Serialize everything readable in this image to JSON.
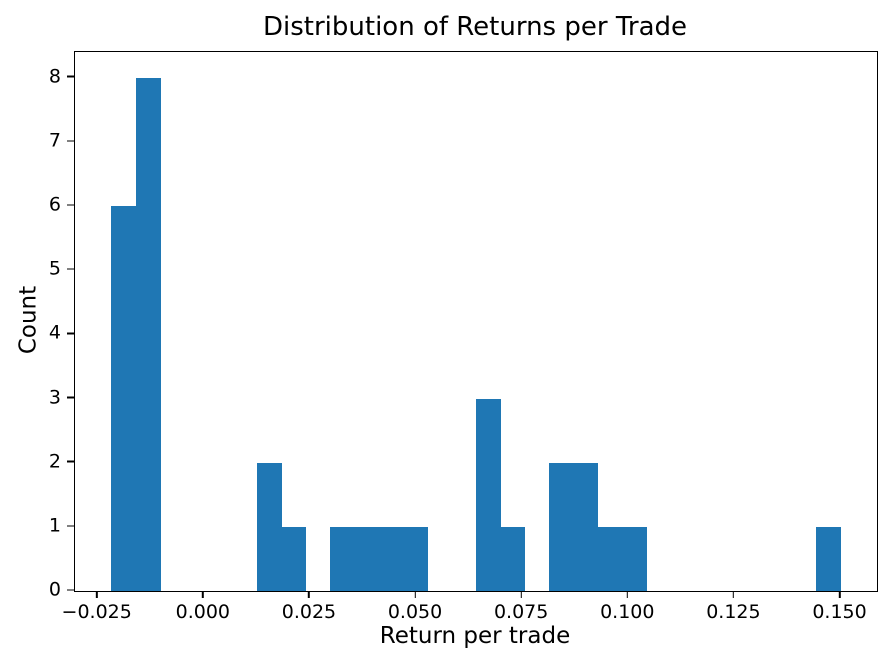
{
  "chart_data": {
    "type": "bar",
    "variant": "histogram",
    "title": "Distribution of Returns per Trade",
    "xlabel": "Return per trade",
    "ylabel": "Count",
    "bar_color": "#1f77b4",
    "axis_color": "#000000",
    "background_color": "#ffffff",
    "grid": false,
    "legend": null,
    "bins": {
      "start": -0.02176,
      "width": 0.005725,
      "count": 30
    },
    "counts": [
      6,
      8,
      0,
      0,
      0,
      0,
      2,
      1,
      0,
      1,
      1,
      1,
      1,
      0,
      0,
      3,
      1,
      0,
      2,
      2,
      1,
      1,
      0,
      0,
      0,
      0,
      0,
      0,
      0,
      1
    ],
    "xlim": [
      -0.030347,
      0.158587
    ],
    "ylim": [
      0,
      8.4
    ],
    "xticks": {
      "values": [
        -0.025,
        0.0,
        0.025,
        0.05,
        0.075,
        0.1,
        0.125,
        0.15
      ],
      "labels": [
        "−0.025",
        "0.000",
        "0.025",
        "0.050",
        "0.075",
        "0.100",
        "0.125",
        "0.150"
      ]
    },
    "yticks": {
      "values": [
        0,
        1,
        2,
        3,
        4,
        5,
        6,
        7,
        8
      ],
      "labels": [
        "0",
        "1",
        "2",
        "3",
        "4",
        "5",
        "6",
        "7",
        "8"
      ]
    }
  }
}
